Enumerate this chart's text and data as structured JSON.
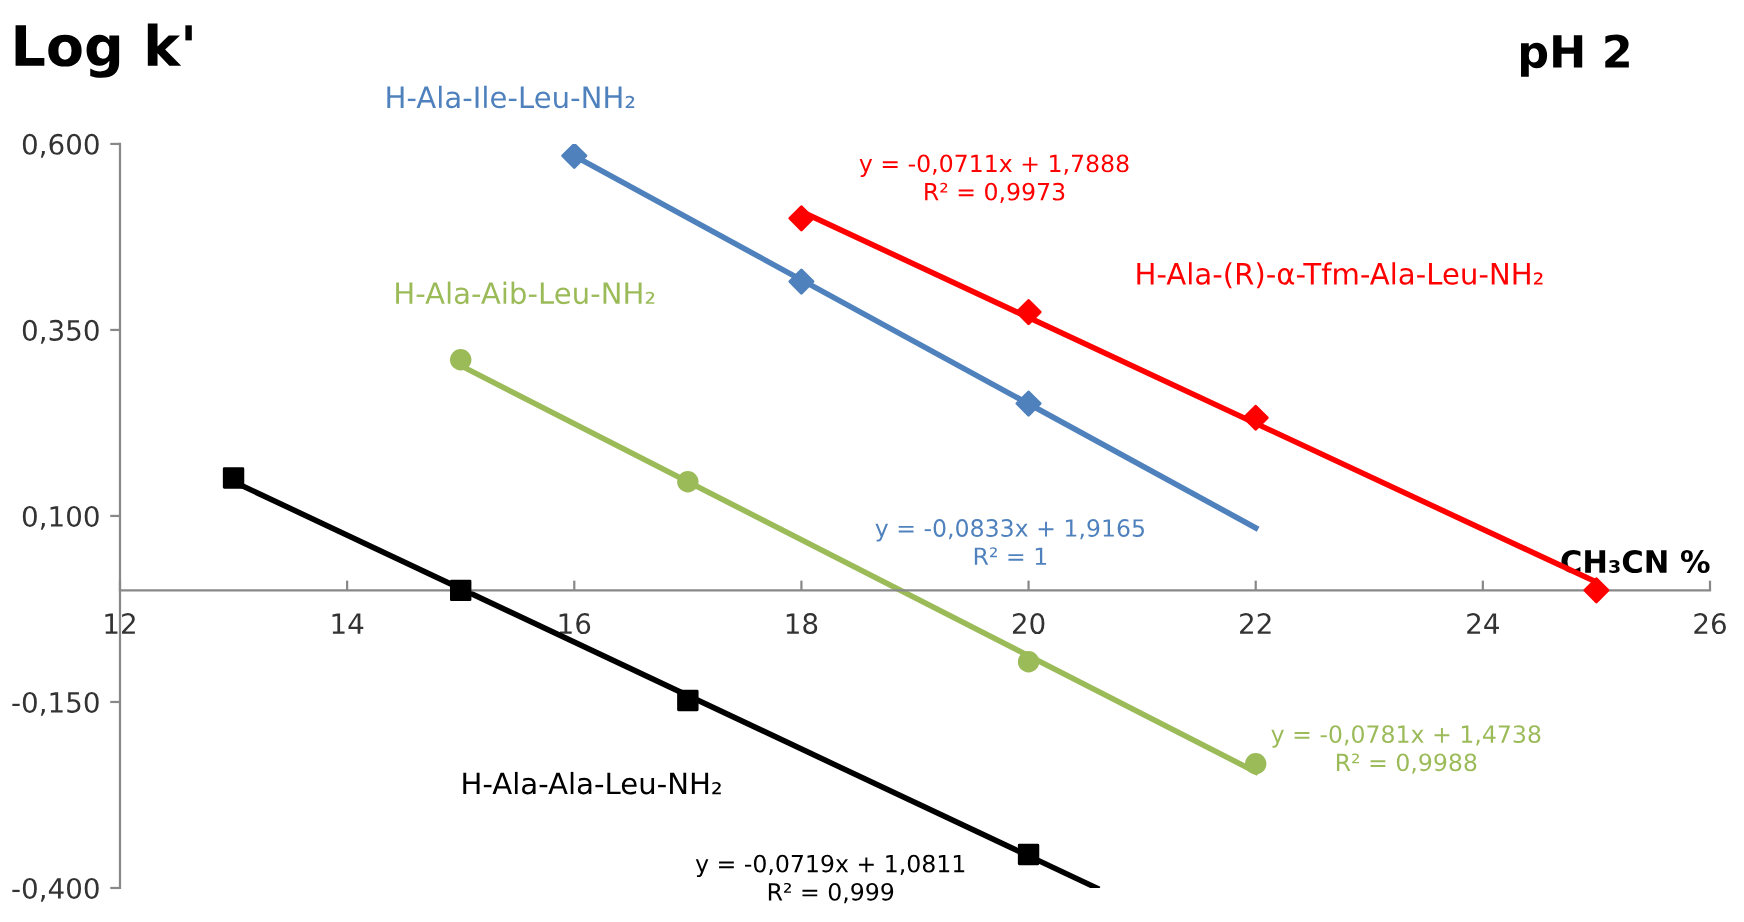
{
  "chart_data": {
    "type": "scatter",
    "title": "Log k'",
    "subtitle": "pH 2",
    "xlabel": "CH₃CN %",
    "xlim": [
      12,
      26
    ],
    "xticks": [
      12,
      14,
      16,
      18,
      20,
      22,
      24,
      26
    ],
    "ylim": [
      -0.4,
      0.6
    ],
    "yticks": [
      {
        "value": -0.4,
        "label": "-0,400"
      },
      {
        "value": -0.15,
        "label": "-0,150"
      },
      {
        "value": 0.1,
        "label": "0,100"
      },
      {
        "value": 0.35,
        "label": "0,350"
      },
      {
        "value": 0.6,
        "label": "0,600"
      }
    ],
    "grid": false,
    "legend": false,
    "series": [
      {
        "name": "H-Ala-Ile-Leu-NH₂",
        "color": "#4f81bd",
        "marker": "diamond",
        "x": [
          16,
          18,
          20
        ],
        "values": [
          0.584,
          0.415,
          0.251
        ]
      },
      {
        "name": "H-Ala-(R)-α-Tfm-Ala-Leu-NH₂",
        "color": "#ff0000",
        "marker": "diamond",
        "x": [
          18,
          20,
          22,
          25
        ],
        "values": [
          0.5,
          0.374,
          0.232,
          0.0
        ]
      },
      {
        "name": "H-Ala-Aib-Leu-NH₂",
        "color": "#9bbb59",
        "marker": "circle",
        "x": [
          15,
          17,
          20,
          22
        ],
        "values": [
          0.31,
          0.146,
          -0.096,
          -0.233
        ]
      },
      {
        "name": "H-Ala-Ala-Leu-NH₂",
        "color": "#000000",
        "marker": "square",
        "x": [
          13,
          15,
          17,
          20
        ],
        "values": [
          0.151,
          0.0,
          -0.148,
          -0.355
        ]
      },
      {
        "type": "line",
        "color": "#4f81bd",
        "x": [
          16,
          22
        ],
        "values": [
          0.584,
          0.084
        ]
      },
      {
        "type": "line",
        "color": "#ff0000",
        "x": [
          18,
          25
        ],
        "values": [
          0.509,
          0.011
        ]
      },
      {
        "type": "line",
        "color": "#9bbb59",
        "x": [
          15,
          22
        ],
        "values": [
          0.302,
          -0.244
        ]
      },
      {
        "type": "line",
        "color": "#000000",
        "x": [
          13,
          20.6
        ],
        "values": [
          0.146,
          -0.4
        ]
      }
    ],
    "annotations": [
      "y = -0,0833x + 1,9165\nR² = 1",
      "y = -0,0711x + 1,7888\nR² = 0,9973",
      "y = -0,0781x + 1,4738\nR² = 0,9988",
      "y = -0,0719x + 1,0811\nR² = 0,999"
    ]
  }
}
